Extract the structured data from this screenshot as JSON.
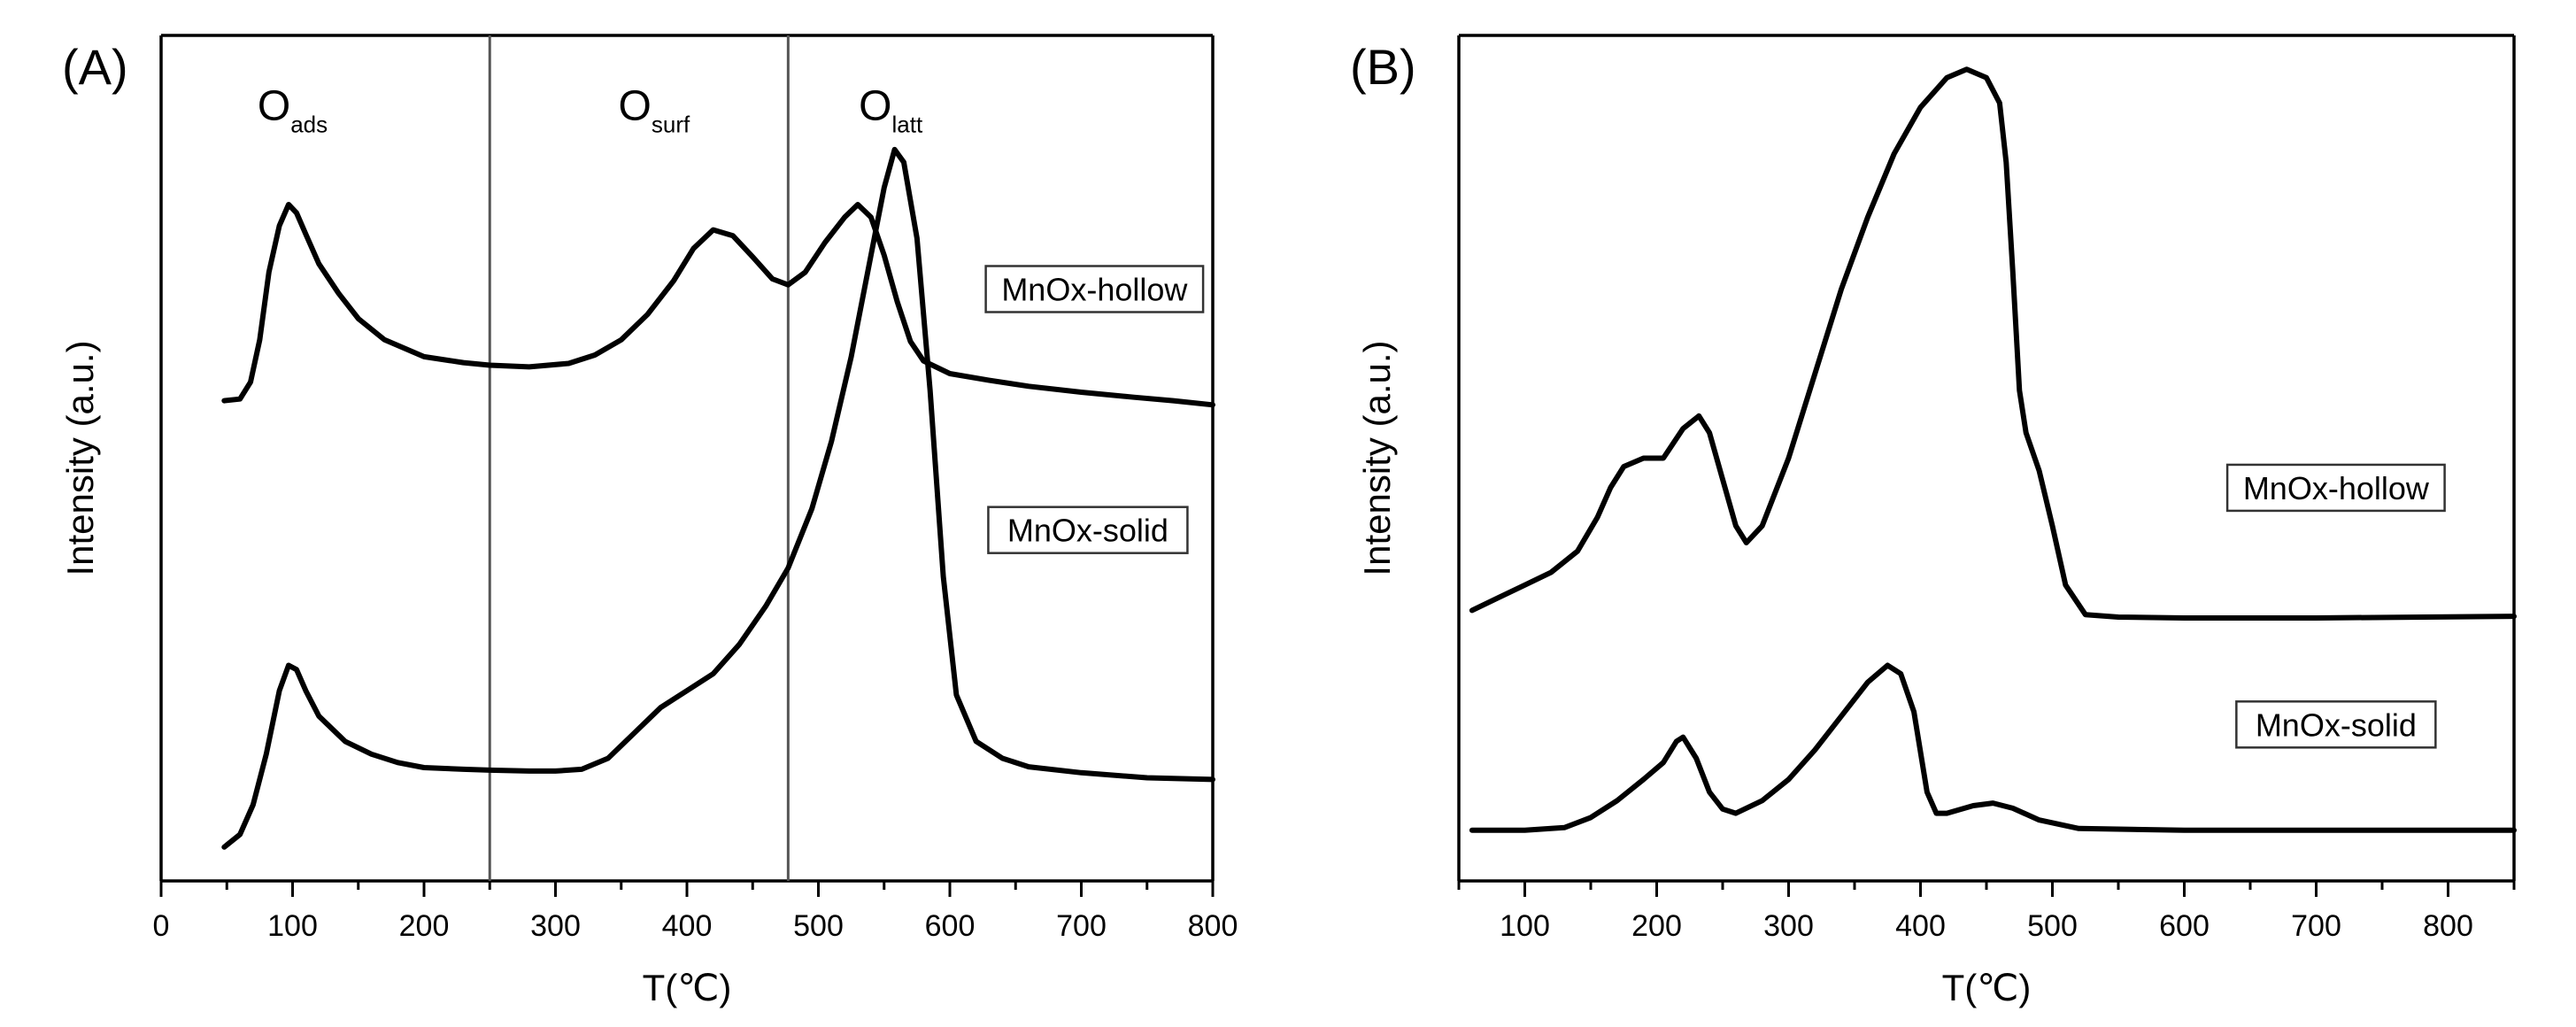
{
  "chart_data": [
    {
      "panel": "(A)",
      "type": "line",
      "xlabel": "T(℃)",
      "ylabel": "Intensity (a.u.)",
      "xlim": [
        0,
        800
      ],
      "xticks": [
        0,
        100,
        200,
        300,
        400,
        500,
        600,
        700,
        800
      ],
      "ylim": [
        0,
        100
      ],
      "vlines": [
        250,
        477
      ],
      "annotations": [
        {
          "main": "O",
          "sub": "ads",
          "x": 100,
          "y": 90
        },
        {
          "main": "O",
          "sub": "surf",
          "x": 375,
          "y": 90
        },
        {
          "main": "O",
          "sub": "latt",
          "x": 555,
          "y": 90
        }
      ],
      "series": [
        {
          "name": "MnOx-hollow",
          "label_pos": {
            "x": 710,
            "y": 70
          },
          "x": [
            48,
            60,
            68,
            75,
            82,
            90,
            97,
            103,
            110,
            120,
            135,
            150,
            170,
            200,
            230,
            250,
            280,
            310,
            330,
            350,
            370,
            390,
            405,
            420,
            435,
            450,
            465,
            477,
            490,
            505,
            520,
            530,
            540,
            550,
            560,
            570,
            580,
            600,
            630,
            660,
            700,
            740,
            770,
            800
          ],
          "y": [
            56.8,
            57,
            59,
            64,
            72,
            77.5,
            80,
            79,
            76.5,
            73,
            69.5,
            66.5,
            64,
            62,
            61.3,
            61,
            60.8,
            61.2,
            62.2,
            64,
            67,
            71,
            74.8,
            77,
            76.3,
            73.8,
            71.2,
            70.5,
            72,
            75.5,
            78.5,
            80,
            78.5,
            74,
            68.5,
            63.8,
            61.5,
            60,
            59.2,
            58.5,
            57.8,
            57.2,
            56.8,
            56.3
          ]
        },
        {
          "name": "MnOx-solid",
          "label_pos": {
            "x": 705,
            "y": 41.5
          },
          "x": [
            48,
            60,
            70,
            80,
            90,
            97,
            103,
            110,
            120,
            140,
            160,
            180,
            200,
            230,
            250,
            280,
            300,
            320,
            340,
            360,
            380,
            400,
            420,
            440,
            460,
            477,
            495,
            510,
            525,
            540,
            550,
            558,
            565,
            575,
            585,
            595,
            605,
            620,
            640,
            660,
            700,
            750,
            800
          ],
          "y": [
            4,
            5.5,
            9,
            15,
            22.5,
            25.5,
            25,
            22.5,
            19.5,
            16.5,
            15,
            14,
            13.4,
            13.2,
            13.1,
            13,
            13,
            13.2,
            14.5,
            17.5,
            20.5,
            22.5,
            24.5,
            28,
            32.5,
            37,
            44,
            52,
            62,
            74,
            82,
            86.5,
            85,
            76,
            58,
            36,
            22,
            16.5,
            14.5,
            13.5,
            12.8,
            12.2,
            12
          ]
        }
      ]
    },
    {
      "panel": "(B)",
      "type": "line",
      "xlabel": "T(℃)",
      "ylabel": "Intensity (a.u.)",
      "xlim": [
        50,
        850
      ],
      "xticks": [
        100,
        200,
        300,
        400,
        500,
        600,
        700,
        800
      ],
      "ylim": [
        0,
        100
      ],
      "annotations": [],
      "series": [
        {
          "name": "MnOx-hollow",
          "label_pos": {
            "x": 715,
            "y": 46.5
          },
          "x": [
            60,
            80,
            100,
            120,
            140,
            155,
            165,
            175,
            190,
            205,
            220,
            232,
            240,
            250,
            260,
            268,
            280,
            300,
            320,
            340,
            360,
            380,
            400,
            420,
            435,
            450,
            460,
            465,
            470,
            475,
            480,
            490,
            500,
            510,
            525,
            550,
            600,
            700,
            850
          ],
          "y": [
            32,
            33.5,
            35,
            36.5,
            39,
            43,
            46.5,
            49,
            50,
            50,
            53.5,
            55,
            53,
            47.5,
            42,
            40,
            42,
            50,
            60,
            70,
            78.5,
            86,
            91.5,
            95,
            96,
            95,
            92,
            85,
            72,
            58,
            53,
            48.5,
            42,
            35,
            31.5,
            31.2,
            31.1,
            31.1,
            31.3
          ]
        },
        {
          "name": "MnOx-solid",
          "label_pos": {
            "x": 715,
            "y": 18.5
          },
          "x": [
            60,
            100,
            130,
            150,
            170,
            190,
            205,
            215,
            220,
            230,
            240,
            250,
            260,
            280,
            300,
            320,
            340,
            360,
            375,
            385,
            395,
            405,
            412,
            420,
            440,
            455,
            470,
            490,
            520,
            600,
            700,
            850
          ],
          "y": [
            6,
            6,
            6.3,
            7.5,
            9.5,
            12,
            14,
            16.5,
            17,
            14.5,
            10.5,
            8.5,
            8,
            9.5,
            12,
            15.5,
            19.5,
            23.5,
            25.5,
            24.5,
            20,
            10.5,
            8,
            8,
            8.9,
            9.2,
            8.6,
            7.2,
            6.2,
            6,
            6,
            6
          ]
        }
      ]
    }
  ]
}
